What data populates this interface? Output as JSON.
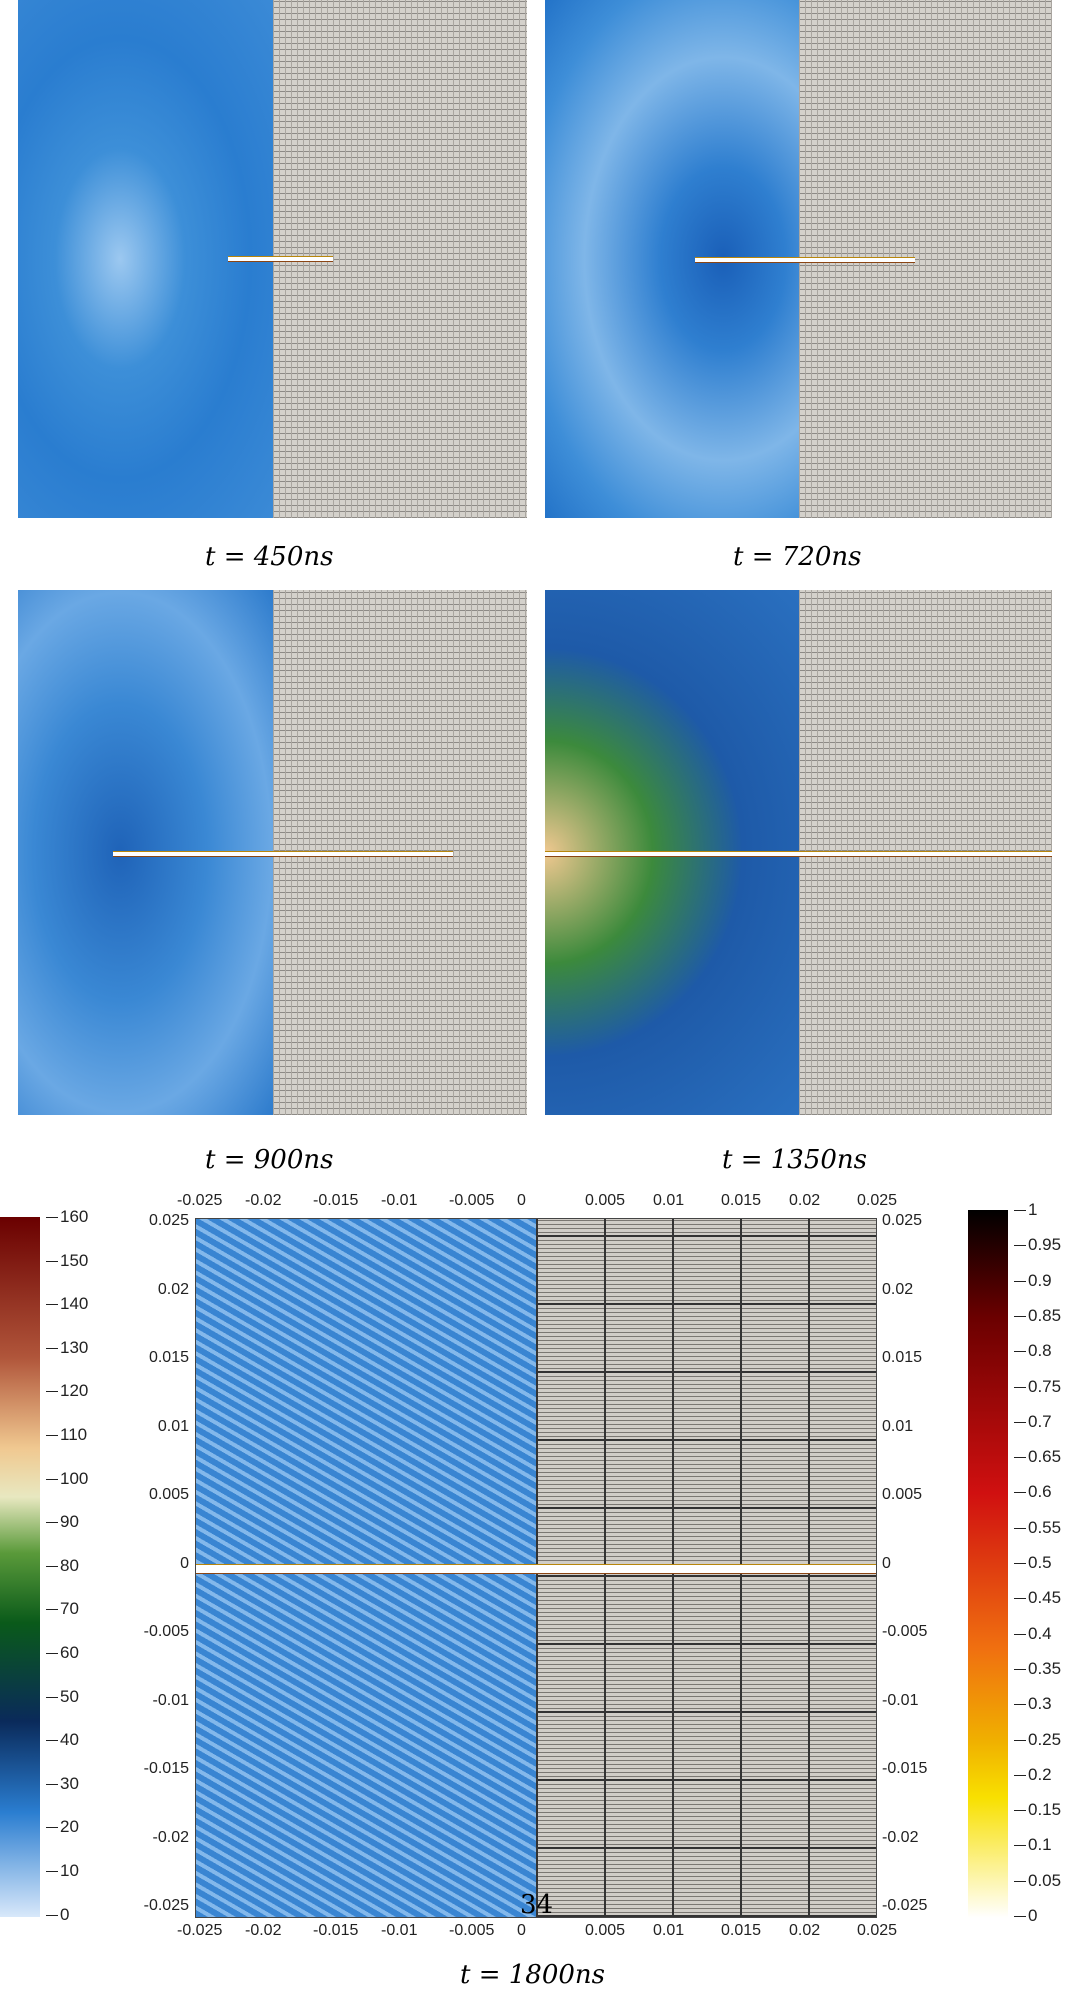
{
  "captions": [
    "t = 450ns",
    "t = 720ns",
    "t = 900ns",
    "t = 1350ns",
    "t = 1800ns"
  ],
  "page_number": "34",
  "axes": {
    "x_ticks": [
      "-0.025",
      "-0.02",
      "-0.015",
      "-0.01",
      "-0.005",
      "0",
      "0.005",
      "0.01",
      "0.015",
      "0.02",
      "0.025"
    ],
    "y_ticks": [
      "0.025",
      "0.02",
      "0.015",
      "0.01",
      "0.005",
      "0",
      "-0.005",
      "-0.01",
      "-0.015",
      "-0.02",
      "-0.025"
    ]
  },
  "left_colorbar": {
    "labels": [
      "160",
      "150",
      "140",
      "130",
      "120",
      "110",
      "100",
      "90",
      "80",
      "70",
      "60",
      "50",
      "40",
      "30",
      "20",
      "10",
      "0"
    ],
    "colors": [
      "#6a0000",
      "#c0704a",
      "#f0c890",
      "#e8e8c0",
      "#5a9a3a",
      "#0a5a1a",
      "#0a2a5a",
      "#2a7dd0",
      "#d8e8fa"
    ]
  },
  "right_colorbar": {
    "labels": [
      "1",
      "0.95",
      "0.9",
      "0.85",
      "0.8",
      "0.75",
      "0.7",
      "0.65",
      "0.6",
      "0.55",
      "0.5",
      "0.45",
      "0.4",
      "0.35",
      "0.3",
      "0.25",
      "0.2",
      "0.15",
      "0.1",
      "0.05",
      "0"
    ],
    "colors": [
      "#000000",
      "#6a0000",
      "#d01010",
      "#f07010",
      "#f0b000",
      "#f8e000",
      "#ffffff"
    ]
  }
}
